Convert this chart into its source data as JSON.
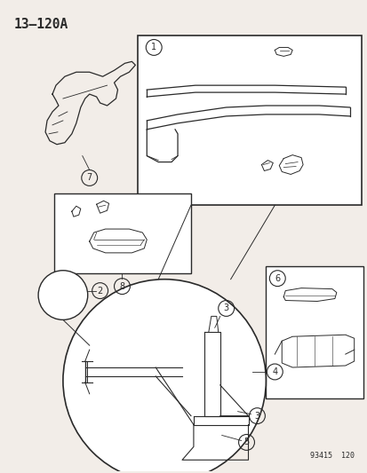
{
  "title": "13–120A",
  "footer": "93415  120",
  "bg_color": "#f2ede8",
  "line_color": "#2a2a2a",
  "fig_w": 4.14,
  "fig_h": 5.33,
  "dpi": 100
}
